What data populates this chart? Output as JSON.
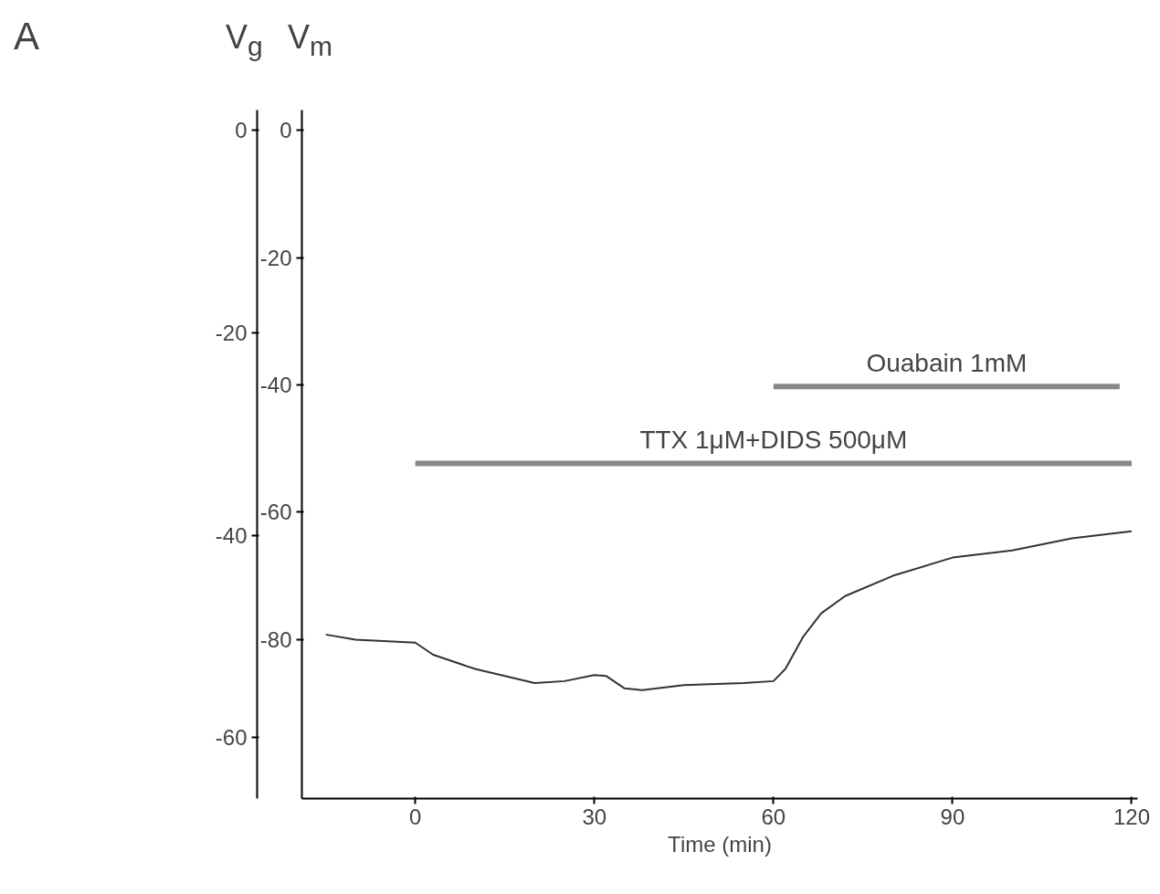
{
  "chart_data": {
    "type": "line",
    "xlabel": "Time (min)",
    "ylabel": "V$_{g}$",
    "y2label": "V$_{m}$",
    "annotations": [
      "A"
    ],
    "series": [
      {
        "color": "#333333",
        "x": [
          -15,
          -10,
          0,
          3,
          10,
          20,
          25,
          30,
          32,
          35,
          38,
          45,
          55,
          60,
          62,
          65,
          68,
          72,
          80,
          90,
          100,
          110,
          120
        ],
        "values": [
          -49.8,
          -50.3,
          -50.6,
          -51.8,
          -53.2,
          -54.6,
          -54.4,
          -53.8,
          -53.9,
          -55.1,
          -55.3,
          -54.8,
          -54.6,
          -54.4,
          -53.2,
          -50.0,
          -47.7,
          -46.0,
          -44.0,
          -42.2,
          -41.5,
          -40.3,
          -39.6
        ]
      },
      {
        "name": "Ouabain 1mM",
        "color": "#888888",
        "x": [
          60,
          118
        ],
        "values": [
          -25.3,
          -25.3
        ]
      },
      {
        "name": "TTX 1μM+DIDS 500μM",
        "color": "#888888",
        "x": [
          0,
          120
        ],
        "values": [
          -32.9,
          -32.9
        ]
      }
    ],
    "xlim": [
      -19,
      121
    ],
    "xticks": [
      0,
      30,
      60,
      90,
      120
    ],
    "ylim": [
      -66,
      2
    ],
    "yticks": [
      0,
      -20,
      -40,
      -60
    ],
    "y2lim": [
      -105,
      3.2
    ],
    "y2ticks": [
      0,
      -20,
      -40,
      -60,
      -80
    ],
    "grid": false
  }
}
